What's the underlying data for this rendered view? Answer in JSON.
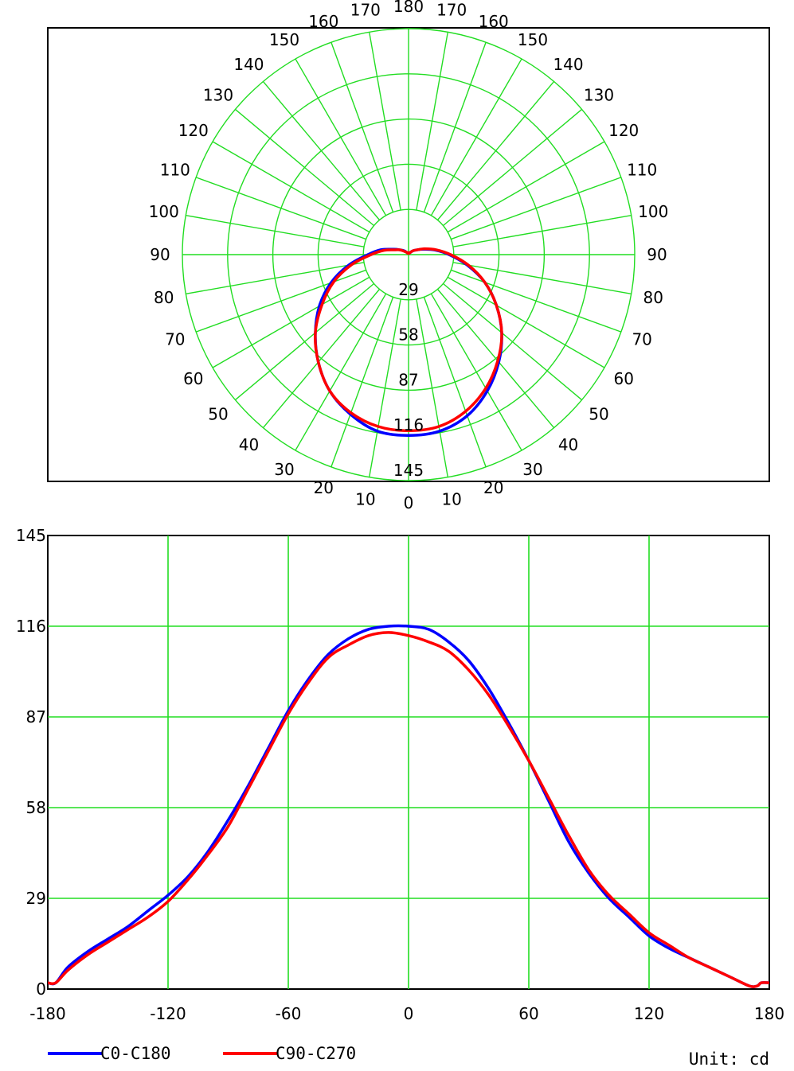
{
  "chart_data": [
    {
      "type": "polar",
      "angle_labels_left": [
        "0",
        "10",
        "20",
        "30",
        "40",
        "50",
        "60",
        "70",
        "80",
        "90",
        "100",
        "110",
        "120",
        "130",
        "140",
        "150",
        "160",
        "170",
        "180"
      ],
      "angle_labels_right": [
        "10",
        "20",
        "30",
        "40",
        "50",
        "60",
        "70",
        "80",
        "90",
        "100",
        "110",
        "120",
        "130",
        "140",
        "150",
        "160",
        "170"
      ],
      "radial_labels": [
        "29",
        "58",
        "87",
        "116",
        "145"
      ],
      "rmax": 145,
      "angle_values_deg": [
        0,
        10,
        20,
        30,
        40,
        50,
        60,
        70,
        80,
        90,
        100,
        110,
        120,
        130,
        140,
        150,
        160,
        170,
        180
      ],
      "series": [
        {
          "name": "C0-C180",
          "color": "#0000ff",
          "left": [
            116,
            115,
            109,
            101,
            90,
            78,
            66,
            53,
            39,
            26,
            18,
            10,
            6,
            4,
            2,
            1,
            1,
            1,
            2
          ],
          "right": [
            116,
            115,
            110,
            101,
            90,
            78,
            65,
            52,
            38,
            26,
            17,
            10,
            6,
            4,
            2,
            1,
            1,
            1,
            2
          ]
        },
        {
          "name": "C90-C270",
          "color": "#ff0000",
          "left": [
            113,
            112,
            108,
            101,
            90,
            78,
            64,
            51,
            37,
            24,
            16,
            9,
            6,
            3,
            2,
            1,
            1,
            1,
            2
          ],
          "right": [
            113,
            112,
            107,
            99,
            89,
            78,
            65,
            52,
            39,
            27,
            18,
            11,
            6,
            4,
            2,
            1,
            1,
            1,
            2
          ]
        }
      ]
    },
    {
      "type": "line",
      "x_ticks": [
        "-180",
        "-120",
        "-60",
        "0",
        "60",
        "120",
        "180"
      ],
      "y_ticks": [
        "0",
        "29",
        "58",
        "87",
        "116",
        "145"
      ],
      "xlim": [
        -180,
        180
      ],
      "ylim": [
        0,
        145
      ],
      "grid": true,
      "series": [
        {
          "name": "C0-C180",
          "color": "#0000ff",
          "x": [
            -180,
            -176,
            -170,
            -160,
            -150,
            -140,
            -130,
            -120,
            -110,
            -100,
            -90,
            -80,
            -70,
            -60,
            -50,
            -40,
            -30,
            -20,
            -10,
            0,
            10,
            20,
            30,
            40,
            50,
            60,
            70,
            80,
            90,
            100,
            110,
            120,
            130,
            140,
            150,
            160,
            170,
            174,
            176,
            180
          ],
          "y": [
            2,
            2,
            7,
            12,
            16,
            20,
            25,
            30,
            36,
            44,
            54,
            65,
            77,
            89,
            99,
            107,
            112,
            115,
            116,
            116,
            115,
            111,
            105,
            96,
            85,
            73,
            60,
            47,
            37,
            29,
            23,
            17,
            13,
            10,
            7,
            4,
            1,
            1,
            2,
            2
          ]
        },
        {
          "name": "C90-C270",
          "color": "#ff0000",
          "x": [
            -180,
            -176,
            -170,
            -160,
            -150,
            -140,
            -130,
            -120,
            -110,
            -100,
            -90,
            -80,
            -70,
            -60,
            -50,
            -40,
            -30,
            -20,
            -10,
            0,
            10,
            20,
            30,
            40,
            50,
            60,
            70,
            80,
            90,
            100,
            110,
            120,
            130,
            140,
            150,
            160,
            170,
            174,
            176,
            180
          ],
          "y": [
            2,
            2,
            6,
            11,
            15,
            19,
            23,
            28,
            35,
            43,
            52,
            64,
            76,
            88,
            98,
            106,
            110,
            113,
            114,
            113,
            111,
            108,
            102,
            94,
            84,
            73,
            61,
            49,
            38,
            30,
            24,
            18,
            14,
            10,
            7,
            4,
            1,
            1,
            2,
            2
          ]
        }
      ],
      "unit_label": "Unit: cd"
    }
  ]
}
